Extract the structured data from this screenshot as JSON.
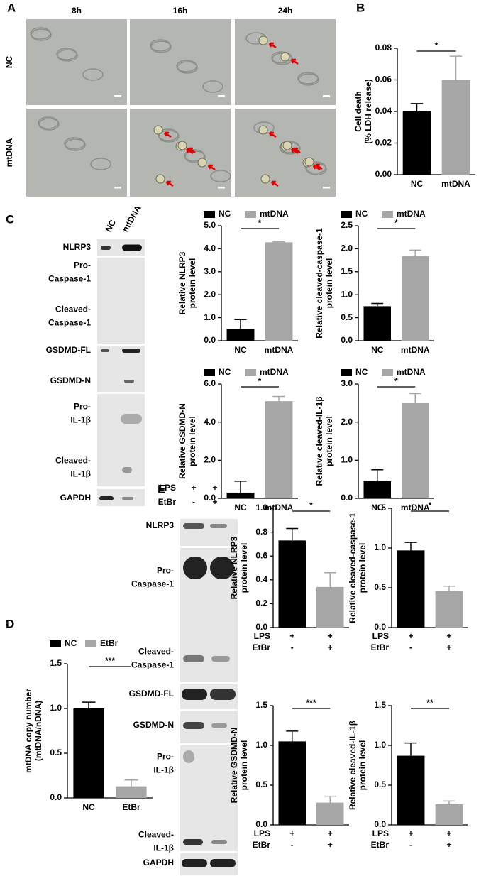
{
  "panels": [
    "A",
    "B",
    "C",
    "D",
    "E"
  ],
  "micrographs": {
    "columns": [
      "8h",
      "16h",
      "24h"
    ],
    "rows": [
      "NC",
      "mtDNA"
    ]
  },
  "blots": [
    {
      "columns": [
        "NC",
        "mtDNA"
      ],
      "rows": [
        [
          "NLRP3"
        ],
        [
          "Pro-",
          "Caspase-1"
        ],
        [
          "Cleaved-",
          "Caspase-1"
        ],
        [
          "GSDMD-FL"
        ],
        [
          "GSDMD-N"
        ],
        [
          "Pro-",
          "IL-1β"
        ],
        [
          "Cleaved-",
          "IL-1β"
        ],
        [
          "GAPDH"
        ]
      ]
    },
    {
      "header_rows": [
        {
          "label": "LPS",
          "values": [
            "+",
            "+"
          ]
        },
        {
          "label": "EtBr",
          "values": [
            "-",
            "+"
          ]
        }
      ],
      "rows": [
        [
          "NLRP3"
        ],
        [
          "Pro-",
          "Caspase-1"
        ],
        [
          "Cleaved-",
          "Caspase-1"
        ],
        [
          "GSDMD-FL"
        ],
        [
          "GSDMD-N"
        ],
        [
          "Pro-",
          "IL-1β"
        ],
        [
          "Cleaved-",
          "IL-1β"
        ],
        [
          "GAPDH"
        ]
      ]
    }
  ],
  "chart_data": [
    {
      "type": "bar",
      "ylabel": [
        "Cell death",
        "(% LDH release)"
      ],
      "categories": [
        "NC",
        "mtDNA"
      ],
      "values": [
        0.04,
        0.06
      ],
      "errors": [
        0.005,
        0.015
      ],
      "colors": [
        "#000000",
        "#a6a6a6"
      ],
      "ylim": [
        0,
        0.08
      ],
      "yticks": [
        {
          "value": 0,
          "label": "0.00"
        },
        {
          "value": 0.02,
          "label": "0.02"
        },
        {
          "value": 0.04,
          "label": "0.04"
        },
        {
          "value": 0.06,
          "label": "0.06"
        },
        {
          "value": 0.08,
          "label": "0.08"
        }
      ],
      "significance": "*",
      "legend": "none"
    },
    {
      "type": "bar",
      "ylabel": [
        "Relative NLRP3",
        "protein level"
      ],
      "categories": [
        "NC",
        "mtDNA"
      ],
      "values": [
        0.52,
        4.28
      ],
      "errors": [
        0.4,
        0.02
      ],
      "colors": [
        "#000000",
        "#a6a6a6"
      ],
      "ylim": [
        0,
        5
      ],
      "yticks": [
        {
          "value": 0,
          "label": "0.0"
        },
        {
          "value": 1,
          "label": "1.0"
        },
        {
          "value": 2,
          "label": "2.0"
        },
        {
          "value": 3,
          "label": "3.0"
        },
        {
          "value": 4,
          "label": "4.0"
        },
        {
          "value": 5,
          "label": "5.0"
        }
      ],
      "significance": "*",
      "legend": "top"
    },
    {
      "type": "bar",
      "ylabel": [
        "Relative cleaved-caspase-1",
        "protein level"
      ],
      "categories": [
        "NC",
        "mtDNA"
      ],
      "values": [
        0.75,
        1.84
      ],
      "errors": [
        0.06,
        0.13
      ],
      "colors": [
        "#000000",
        "#a6a6a6"
      ],
      "ylim": [
        0,
        2.5
      ],
      "yticks": [
        {
          "value": 0,
          "label": "0.0"
        },
        0.5,
        {
          "value": 1,
          "label": "1.0"
        },
        1.5,
        {
          "value": 2,
          "label": "2.0"
        },
        2.5
      ],
      "significance": "*",
      "legend": "top"
    },
    {
      "type": "bar",
      "ylabel": [
        "Relative GSDMD-N",
        "protein level"
      ],
      "categories": [
        "NC",
        "mtDNA"
      ],
      "values": [
        0.3,
        5.1
      ],
      "errors": [
        0.6,
        0.25
      ],
      "colors": [
        "#000000",
        "#a6a6a6"
      ],
      "ylim": [
        0,
        6
      ],
      "yticks": [
        {
          "value": 0,
          "label": "0.0"
        },
        {
          "value": 2,
          "label": "2.0"
        },
        {
          "value": 4,
          "label": "4.0"
        },
        {
          "value": 6,
          "label": "6.0"
        }
      ],
      "significance": "*",
      "legend": "top"
    },
    {
      "type": "bar",
      "ylabel": [
        "Relative cleaved-IL-1β",
        "protein level"
      ],
      "categories": [
        "NC",
        "mtDNA"
      ],
      "values": [
        0.45,
        2.5
      ],
      "errors": [
        0.3,
        0.25
      ],
      "colors": [
        "#000000",
        "#a6a6a6"
      ],
      "ylim": [
        0,
        3
      ],
      "yticks": [
        {
          "value": 0,
          "label": "0.0"
        },
        {
          "value": 1,
          "label": "1.0"
        },
        {
          "value": 2,
          "label": "2.0"
        },
        {
          "value": 3,
          "label": "3.0"
        }
      ],
      "significance": "*",
      "legend": "top"
    },
    {
      "type": "bar",
      "ylabel": [
        "mtDNA copy number",
        "(mtDNA/nDNA)"
      ],
      "categories": [
        "NC",
        "EtBr"
      ],
      "values": [
        1.0,
        0.13
      ],
      "errors": [
        0.07,
        0.07
      ],
      "colors": [
        "#000000",
        "#a6a6a6"
      ],
      "ylim": [
        0,
        1.5
      ],
      "yticks": [
        {
          "value": 0,
          "label": "0.0"
        },
        0.5,
        {
          "value": 1,
          "label": "1.0"
        },
        1.5
      ],
      "significance": "***",
      "legend": "top"
    },
    {
      "type": "bar",
      "ylabel": [
        "Relative NLRP3",
        "protein level"
      ],
      "x_label_rows": [
        {
          "label": "LPS",
          "values": [
            "+",
            "+"
          ]
        },
        {
          "label": "EtBr",
          "values": [
            "-",
            "+"
          ]
        }
      ],
      "values": [
        0.73,
        0.34
      ],
      "errors": [
        0.1,
        0.12
      ],
      "colors": [
        "#000000",
        "#a6a6a6"
      ],
      "ylim": [
        0,
        1
      ],
      "yticks": [
        {
          "value": 0,
          "label": "0.0"
        },
        0.2,
        0.4,
        0.6,
        0.8,
        {
          "value": 1,
          "label": "1.0"
        }
      ],
      "significance": "*",
      "legend": "none"
    },
    {
      "type": "bar",
      "ylabel": [
        "Relative cleaved-caspase-1",
        "protein level"
      ],
      "x_label_rows": [
        {
          "label": "LPS",
          "values": [
            "+",
            "+"
          ]
        },
        {
          "label": "EtBr",
          "values": [
            "-",
            "+"
          ]
        }
      ],
      "values": [
        0.97,
        0.46
      ],
      "errors": [
        0.1,
        0.06
      ],
      "colors": [
        "#000000",
        "#a6a6a6"
      ],
      "ylim": [
        0,
        1.5
      ],
      "yticks": [
        {
          "value": 0,
          "label": "0.0"
        },
        0.5,
        {
          "value": 1,
          "label": "1.0"
        },
        1.5
      ],
      "significance": "*",
      "legend": "none"
    },
    {
      "type": "bar",
      "ylabel": [
        "Relative GSDMD-N",
        "protein level"
      ],
      "x_label_rows": [
        {
          "label": "LPS",
          "values": [
            "+",
            "+"
          ]
        },
        {
          "label": "EtBr",
          "values": [
            "-",
            "+"
          ]
        }
      ],
      "values": [
        1.05,
        0.28
      ],
      "errors": [
        0.13,
        0.08
      ],
      "colors": [
        "#000000",
        "#a6a6a6"
      ],
      "ylim": [
        0,
        1.5
      ],
      "yticks": [
        {
          "value": 0,
          "label": "0.0"
        },
        0.5,
        {
          "value": 1,
          "label": "1.0"
        },
        1.5
      ],
      "significance": "***",
      "legend": "none"
    },
    {
      "type": "bar",
      "ylabel": [
        "Relative cleaved-IL-1β",
        "protein level"
      ],
      "x_label_rows": [
        {
          "label": "LPS",
          "values": [
            "+",
            "+"
          ]
        },
        {
          "label": "EtBr",
          "values": [
            "-",
            "+"
          ]
        }
      ],
      "values": [
        0.87,
        0.26
      ],
      "errors": [
        0.16,
        0.04
      ],
      "colors": [
        "#000000",
        "#a6a6a6"
      ],
      "ylim": [
        0,
        1.5
      ],
      "yticks": [
        {
          "value": 0,
          "label": "0.0"
        },
        0.5,
        {
          "value": 1,
          "label": "1.0"
        },
        1.5
      ],
      "significance": "**",
      "legend": "none"
    }
  ]
}
